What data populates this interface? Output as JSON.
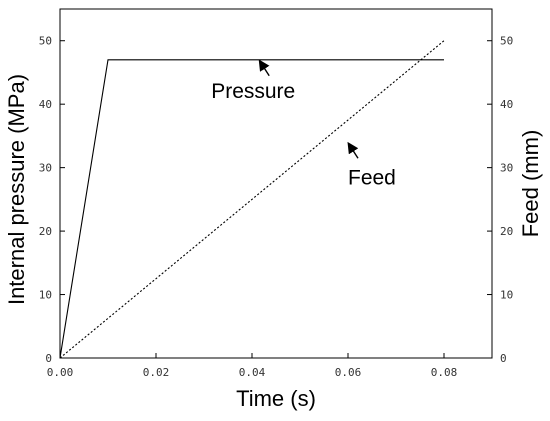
{
  "chart_data": {
    "type": "line",
    "xlabel": "Time (s)",
    "ylabel_left": "Internal pressure (MPa)",
    "ylabel_right": "Feed (mm)",
    "xlim": [
      0,
      0.09
    ],
    "ylim_left": [
      0,
      55
    ],
    "ylim_right": [
      0,
      55
    ],
    "x_ticks": [
      0,
      0.02,
      0.04,
      0.06,
      0.08
    ],
    "x_tick_labels": [
      "0.00",
      "0.02",
      "0.04",
      "0.06",
      "0.08"
    ],
    "y_ticks_left": [
      0,
      10,
      20,
      30,
      40,
      50
    ],
    "y_tick_labels_left": [
      "0",
      "10",
      "20",
      "30",
      "40",
      "50"
    ],
    "y_ticks_right": [
      0,
      10,
      20,
      30,
      40,
      50
    ],
    "y_tick_labels_right": [
      "0",
      "10",
      "20",
      "30",
      "40",
      "50"
    ],
    "grid": false,
    "series": [
      {
        "name": "Pressure",
        "axis": "left",
        "style": "solid",
        "color": "#000000",
        "x": [
          0,
          0.01,
          0.08
        ],
        "y": [
          0,
          47,
          47
        ]
      },
      {
        "name": "Feed",
        "axis": "right",
        "style": "dotted",
        "color": "#000000",
        "x": [
          0,
          0.08
        ],
        "y": [
          0,
          50
        ]
      }
    ],
    "annotations": [
      {
        "text": "Pressure",
        "series": "Pressure",
        "arrow_to": [
          0.0415,
          47
        ]
      },
      {
        "text": "Feed",
        "series": "Feed",
        "arrow_to": [
          0.06,
          34
        ]
      }
    ]
  }
}
